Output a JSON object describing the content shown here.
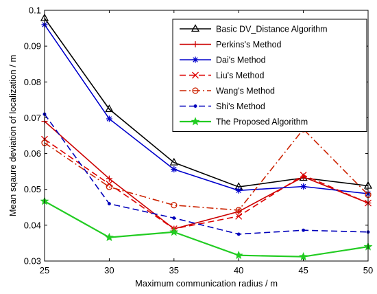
{
  "chart_data": {
    "type": "line",
    "title": "",
    "xlabel": "Maximum communication radius / m",
    "ylabel": "Mean sqaure deviation of localization / m",
    "xlim": [
      25,
      50
    ],
    "ylim": [
      0.03,
      0.1
    ],
    "xticks": [
      25,
      30,
      35,
      40,
      45,
      50
    ],
    "yticks": [
      0.03,
      0.04,
      0.05,
      0.06,
      0.07,
      0.08,
      0.09,
      0.1
    ],
    "grid": false,
    "legend_position": "top-right",
    "x": [
      25,
      30,
      35,
      40,
      45,
      50
    ],
    "series": [
      {
        "name": "Basic DV_Distance Algorithm",
        "values": [
          0.0978,
          0.0724,
          0.0575,
          0.0507,
          0.0532,
          0.051
        ],
        "color": "#000000",
        "dash": "solid",
        "marker": "triangle"
      },
      {
        "name": "Perkins's Method",
        "values": [
          0.069,
          0.053,
          0.039,
          0.0438,
          0.0535,
          0.0462
        ],
        "color": "#cc0000",
        "dash": "solid",
        "marker": "plus"
      },
      {
        "name": "Dai's Method",
        "values": [
          0.096,
          0.0697,
          0.0556,
          0.0497,
          0.0508,
          0.0488
        ],
        "color": "#0000cc",
        "dash": "solid",
        "marker": "asterisk"
      },
      {
        "name": "Liu's Method",
        "values": [
          0.064,
          0.0515,
          0.039,
          0.0425,
          0.054,
          0.0462
        ],
        "color": "#dd0000",
        "dash": "dashed",
        "marker": "x"
      },
      {
        "name": "Wang's Method",
        "values": [
          0.063,
          0.0507,
          0.0456,
          0.0442,
          0.0668,
          0.0485
        ],
        "color": "#cc2200",
        "dash": "dashdot",
        "marker": "circle"
      },
      {
        "name": "Shi's Method",
        "values": [
          0.071,
          0.046,
          0.042,
          0.0375,
          0.0386,
          0.0381
        ],
        "color": "#0000bb",
        "dash": "dashed",
        "marker": "dot"
      },
      {
        "name": "The Proposed Algorithm",
        "values": [
          0.0467,
          0.0366,
          0.0381,
          0.0316,
          0.0312,
          0.034
        ],
        "color": "#22cc22",
        "dash": "solid",
        "marker": "star"
      }
    ]
  }
}
